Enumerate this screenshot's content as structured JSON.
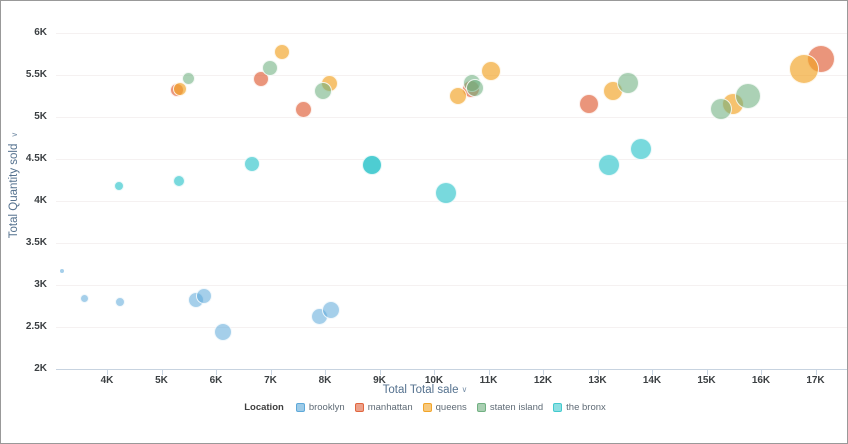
{
  "chart_data": {
    "type": "scatter",
    "title": "",
    "xlabel": "Total Total sale",
    "ylabel": "Total Quantity sold",
    "sort_glyph": "∨",
    "xlim": [
      3.05,
      17.55
    ],
    "ylim": [
      2,
      6
    ],
    "grid": "horizontal",
    "legend_position": "bottom",
    "legend_title": "Location",
    "x_ticks": [
      {
        "label": "4K",
        "value": 4
      },
      {
        "label": "5K",
        "value": 5
      },
      {
        "label": "6K",
        "value": 6
      },
      {
        "label": "7K",
        "value": 7
      },
      {
        "label": "8K",
        "value": 8
      },
      {
        "label": "9K",
        "value": 9
      },
      {
        "label": "10K",
        "value": 10
      },
      {
        "label": "11K",
        "value": 11
      },
      {
        "label": "12K",
        "value": 12
      },
      {
        "label": "13K",
        "value": 13
      },
      {
        "label": "14K",
        "value": 14
      },
      {
        "label": "15K",
        "value": 15
      },
      {
        "label": "16K",
        "value": 16
      },
      {
        "label": "17K",
        "value": 17
      }
    ],
    "y_ticks": [
      {
        "label": "6K",
        "value": 6
      },
      {
        "label": "5.5K",
        "value": 5.5
      },
      {
        "label": "5K",
        "value": 5
      },
      {
        "label": "4.5K",
        "value": 4.5
      },
      {
        "label": "4K",
        "value": 4
      },
      {
        "label": "3.5K",
        "value": 3.5
      },
      {
        "label": "3K",
        "value": 3
      },
      {
        "label": "2.5K",
        "value": 2.5
      },
      {
        "label": "2K",
        "value": 2
      }
    ],
    "series": [
      {
        "name": "brooklyn",
        "color": "#5BA8D8",
        "alpha": 0.55,
        "points": [
          {
            "x": 3.17,
            "y": 3.16,
            "r": 2
          },
          {
            "x": 3.58,
            "y": 2.84,
            "r": 4.5
          },
          {
            "x": 4.24,
            "y": 2.8,
            "r": 5
          },
          {
            "x": 5.63,
            "y": 2.82,
            "r": 8
          },
          {
            "x": 5.78,
            "y": 2.87,
            "r": 8
          },
          {
            "x": 6.13,
            "y": 2.44,
            "r": 9
          },
          {
            "x": 7.89,
            "y": 2.62,
            "r": 8.5
          },
          {
            "x": 8.11,
            "y": 2.7,
            "r": 9
          }
        ]
      },
      {
        "name": "manhattan",
        "color": "#E0633C",
        "alpha": 0.68,
        "points": [
          {
            "x": 5.28,
            "y": 5.32,
            "r": 7
          },
          {
            "x": 6.83,
            "y": 5.45,
            "r": 8
          },
          {
            "x": 7.61,
            "y": 5.09,
            "r": 8.5
          },
          {
            "x": 10.68,
            "y": 5.33,
            "r": 9
          },
          {
            "x": 12.84,
            "y": 5.15,
            "r": 10
          },
          {
            "x": 17.1,
            "y": 5.69,
            "r": 14
          }
        ]
      },
      {
        "name": "queens",
        "color": "#F2A325",
        "alpha": 0.66,
        "points": [
          {
            "x": 5.34,
            "y": 5.33,
            "r": 7
          },
          {
            "x": 7.21,
            "y": 5.77,
            "r": 8
          },
          {
            "x": 8.09,
            "y": 5.39,
            "r": 8.5
          },
          {
            "x": 10.44,
            "y": 5.25,
            "r": 9
          },
          {
            "x": 11.05,
            "y": 5.54,
            "r": 10
          },
          {
            "x": 13.28,
            "y": 5.31,
            "r": 10
          },
          {
            "x": 15.49,
            "y": 5.15,
            "r": 11
          },
          {
            "x": 16.79,
            "y": 5.57,
            "r": 15
          }
        ]
      },
      {
        "name": "staten island",
        "color": "#6FAF7F",
        "alpha": 0.58,
        "points": [
          {
            "x": 5.49,
            "y": 5.45,
            "r": 6.5
          },
          {
            "x": 6.99,
            "y": 5.58,
            "r": 8
          },
          {
            "x": 7.96,
            "y": 5.31,
            "r": 9
          },
          {
            "x": 10.7,
            "y": 5.4,
            "r": 9
          },
          {
            "x": 10.75,
            "y": 5.34,
            "r": 9
          },
          {
            "x": 13.56,
            "y": 5.4,
            "r": 11
          },
          {
            "x": 15.27,
            "y": 5.09,
            "r": 11
          },
          {
            "x": 15.76,
            "y": 5.25,
            "r": 13
          }
        ]
      },
      {
        "name": "the bronx",
        "color": "#3FC9CE",
        "alpha": 0.7,
        "points": [
          {
            "x": 4.22,
            "y": 4.18,
            "r": 5
          },
          {
            "x": 5.32,
            "y": 4.24,
            "r": 6
          },
          {
            "x": 6.66,
            "y": 4.44,
            "r": 8
          },
          {
            "x": 8.86,
            "y": 4.43,
            "r": 10,
            "a": 0.92
          },
          {
            "x": 10.22,
            "y": 4.09,
            "r": 11
          },
          {
            "x": 13.21,
            "y": 4.42,
            "r": 11
          },
          {
            "x": 13.8,
            "y": 4.62,
            "r": 11
          }
        ]
      }
    ]
  }
}
